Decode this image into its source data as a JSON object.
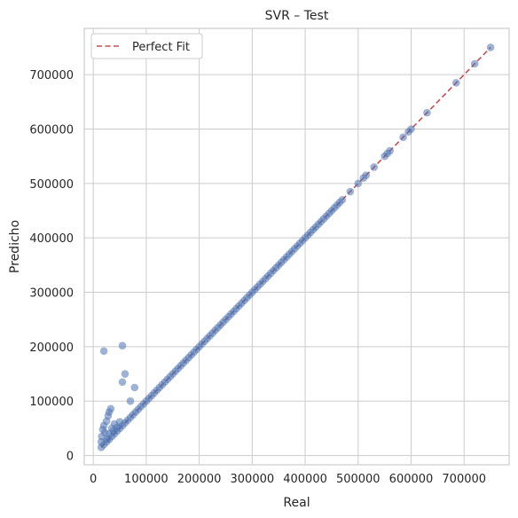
{
  "chart_data": {
    "type": "scatter",
    "title": "SVR – Test",
    "xlabel": "Real",
    "ylabel": "Predicho",
    "xlim": [
      -17000,
      785000
    ],
    "ylim": [
      -17000,
      785000
    ],
    "xticks": [
      0,
      100000,
      200000,
      300000,
      400000,
      500000,
      600000,
      700000
    ],
    "yticks": [
      0,
      100000,
      200000,
      300000,
      400000,
      500000,
      600000,
      700000
    ],
    "grid": true,
    "legend_position": "top-left",
    "colors": {
      "points": "#4c72b0",
      "fit_line": "#c44e52",
      "grid": "#cccccc",
      "axes": "#cccccc"
    },
    "perfect_fit": {
      "name": "Perfect Fit",
      "from": 15000,
      "to": 750000
    },
    "series": [
      {
        "diagonal_points": [
          15000,
          20000,
          25000,
          30000,
          35000,
          40000,
          45000,
          50000,
          55000,
          60000,
          65000,
          70000,
          75000,
          80000,
          85000,
          90000,
          95000,
          100000,
          105000,
          110000,
          115000,
          120000,
          125000,
          130000,
          135000,
          140000,
          145000,
          150000,
          155000,
          160000,
          165000,
          170000,
          175000,
          180000,
          185000,
          190000,
          195000,
          200000,
          205000,
          210000,
          215000,
          220000,
          225000,
          230000,
          235000,
          240000,
          245000,
          250000,
          255000,
          260000,
          265000,
          270000,
          275000,
          280000,
          285000,
          290000,
          295000,
          300000,
          305000,
          310000,
          315000,
          320000,
          325000,
          330000,
          335000,
          340000,
          345000,
          350000,
          355000,
          360000,
          365000,
          370000,
          375000,
          380000,
          385000,
          390000,
          395000,
          400000,
          405000,
          410000,
          415000,
          420000,
          425000,
          430000,
          435000,
          440000,
          445000,
          450000,
          455000,
          460000,
          465000,
          470000,
          485000,
          500000,
          510000,
          515000,
          530000,
          550000,
          555000,
          560000,
          585000,
          595000,
          600000,
          630000,
          685000,
          720000,
          750000
        ],
        "outliers": [
          [
            20000,
            192000
          ],
          [
            55000,
            202000
          ],
          [
            60000,
            150000
          ],
          [
            55000,
            135000
          ],
          [
            78000,
            125000
          ],
          [
            70000,
            100000
          ],
          [
            33000,
            86000
          ],
          [
            30000,
            80000
          ],
          [
            28000,
            73000
          ],
          [
            25000,
            63000
          ],
          [
            20000,
            55000
          ],
          [
            18000,
            48000
          ],
          [
            22000,
            42000
          ],
          [
            16000,
            35000
          ],
          [
            26000,
            30000
          ],
          [
            15000,
            25000
          ],
          [
            40000,
            58000
          ],
          [
            45000,
            52000
          ],
          [
            35000,
            50000
          ],
          [
            50000,
            62000
          ],
          [
            30000,
            40000
          ],
          [
            38000,
            45000
          ]
        ]
      }
    ]
  }
}
